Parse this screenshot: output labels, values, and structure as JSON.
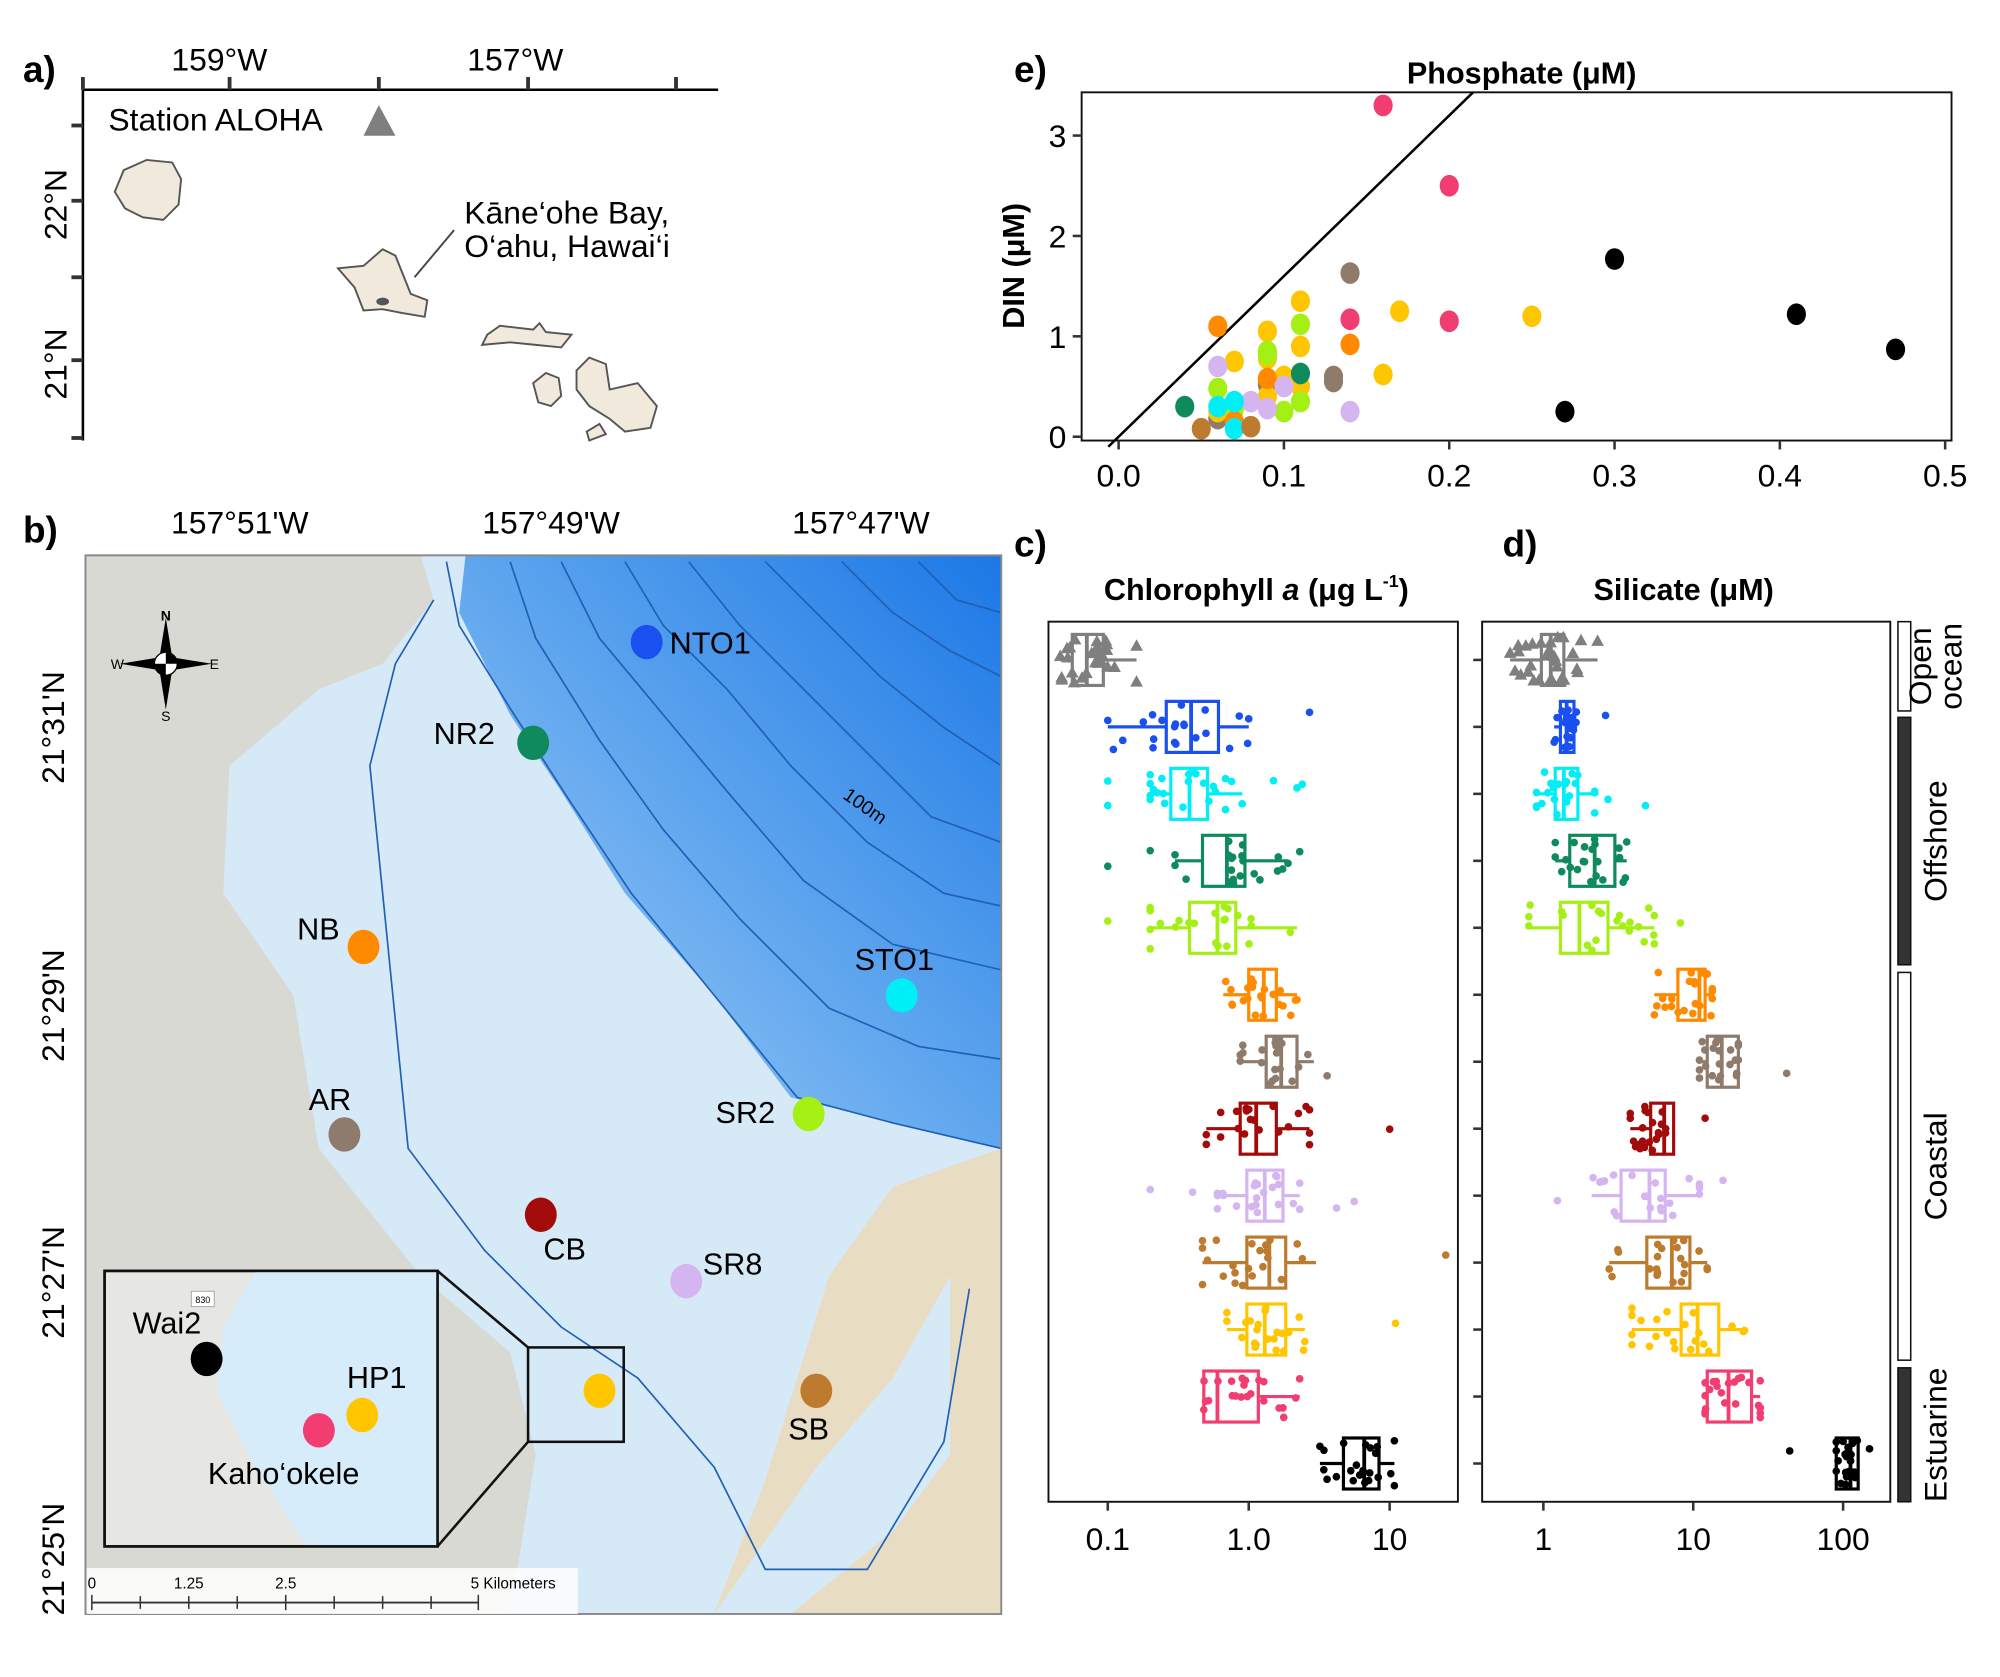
{
  "panel_labels": {
    "a": "a)",
    "b": "b)",
    "c": "c)",
    "d": "d)",
    "e": "e)"
  },
  "panel_a": {
    "lon_ticks": [
      "159°W",
      "157°W"
    ],
    "lat_ticks": [
      "22°N",
      "21°N"
    ],
    "station_aloha": "Station ALOHA",
    "site_label_line1": "Kāne‘ohe Bay,",
    "site_label_line2": "O‘ahu, Hawai‘i",
    "land_color": "#f0e9dc",
    "aloha_marker_color": "#7f7f7f"
  },
  "panel_b": {
    "lon_ticks": [
      "157°51'W",
      "157°49'W",
      "157°47'W"
    ],
    "lat_ticks": [
      "21°31'N",
      "21°29'N",
      "21°27'N",
      "21°25'N"
    ],
    "contour_label": "100m",
    "compass": {
      "n": "N",
      "s": "S",
      "e": "E",
      "w": "W"
    },
    "road_shield": "830",
    "scale_bar": {
      "ticks": [
        "0",
        "1.25",
        "2.5",
        "5 Kilometers"
      ]
    },
    "stations": [
      {
        "name": "NTO1",
        "color": "#1a4ff0"
      },
      {
        "name": "NR2",
        "color": "#0e8a5c"
      },
      {
        "name": "NB",
        "color": "#ff8a00"
      },
      {
        "name": "STO1",
        "color": "#00eef5"
      },
      {
        "name": "AR",
        "color": "#8f7b6c"
      },
      {
        "name": "SR2",
        "color": "#a5f014"
      },
      {
        "name": "CB",
        "color": "#a30a0a"
      },
      {
        "name": "SR8",
        "color": "#d4b5f0"
      },
      {
        "name": "SB",
        "color": "#bd7b2f"
      },
      {
        "name": "HP1",
        "color": "#ffc600"
      },
      {
        "name": "Wai2",
        "color": "#000000"
      },
      {
        "name": "Kaho‘okele",
        "color": "#f23d70"
      }
    ]
  },
  "chart_data": [
    {
      "id": "e",
      "type": "scatter",
      "title": "Phosphate (μM)",
      "ylabel": "DIN (μM)",
      "xlim": [
        -0.025,
        0.52
      ],
      "ylim": [
        -0.05,
        3.45
      ],
      "xticks": [
        "0.0",
        "0.1",
        "0.2",
        "0.3",
        "0.4",
        "0.5"
      ],
      "yticks": [
        "0",
        "1",
        "2",
        "3"
      ],
      "reference_line_slope": 16,
      "points": [
        [
          0.16,
          3.3,
          "#f23d70"
        ],
        [
          0.2,
          2.5,
          "#f23d70"
        ],
        [
          0.14,
          1.17,
          "#f23d70"
        ],
        [
          0.2,
          1.15,
          "#f23d70"
        ],
        [
          0.3,
          1.77,
          "#000000"
        ],
        [
          0.41,
          1.22,
          "#000000"
        ],
        [
          0.47,
          0.87,
          "#000000"
        ],
        [
          0.27,
          0.25,
          "#000000"
        ],
        [
          0.14,
          1.63,
          "#8f7b6c"
        ],
        [
          0.13,
          0.6,
          "#8f7b6c"
        ],
        [
          0.13,
          0.55,
          "#8f7b6c"
        ],
        [
          0.09,
          0.52,
          "#8f7b6c"
        ],
        [
          0.06,
          0.18,
          "#8f7b6c"
        ],
        [
          0.11,
          1.35,
          "#ffc600"
        ],
        [
          0.17,
          1.25,
          "#ffc600"
        ],
        [
          0.25,
          1.2,
          "#ffc600"
        ],
        [
          0.09,
          1.05,
          "#ffc600"
        ],
        [
          0.11,
          0.9,
          "#ffc600"
        ],
        [
          0.07,
          0.75,
          "#ffc600"
        ],
        [
          0.09,
          0.78,
          "#ffc600"
        ],
        [
          0.16,
          0.62,
          "#ffc600"
        ],
        [
          0.1,
          0.6,
          "#ffc600"
        ],
        [
          0.11,
          0.5,
          "#ffc600"
        ],
        [
          0.09,
          0.4,
          "#ffc600"
        ],
        [
          0.06,
          0.25,
          "#ffc600"
        ],
        [
          0.11,
          1.12,
          "#a5f014"
        ],
        [
          0.09,
          0.85,
          "#a5f014"
        ],
        [
          0.09,
          0.82,
          "#a5f014"
        ],
        [
          0.06,
          0.48,
          "#a5f014"
        ],
        [
          0.11,
          0.35,
          "#a5f014"
        ],
        [
          0.1,
          0.25,
          "#a5f014"
        ],
        [
          0.07,
          0.27,
          "#a5f014"
        ],
        [
          0.06,
          1.1,
          "#ff8a00"
        ],
        [
          0.14,
          0.92,
          "#ff8a00"
        ],
        [
          0.09,
          0.58,
          "#ff8a00"
        ],
        [
          0.07,
          0.15,
          "#ff8a00"
        ],
        [
          0.06,
          0.7,
          "#d4b5f0"
        ],
        [
          0.1,
          0.5,
          "#d4b5f0"
        ],
        [
          0.08,
          0.35,
          "#d4b5f0"
        ],
        [
          0.09,
          0.28,
          "#d4b5f0"
        ],
        [
          0.14,
          0.25,
          "#d4b5f0"
        ],
        [
          0.04,
          0.3,
          "#0e8a5c"
        ],
        [
          0.11,
          0.63,
          "#0e8a5c"
        ],
        [
          0.06,
          0.3,
          "#00eef5"
        ],
        [
          0.07,
          0.35,
          "#00eef5"
        ],
        [
          0.07,
          0.08,
          "#00eef5"
        ],
        [
          0.05,
          0.08,
          "#bd7b2f"
        ],
        [
          0.08,
          0.1,
          "#bd7b2f"
        ]
      ]
    },
    {
      "id": "c",
      "type": "box",
      "title": "Chlorophyll a (μg L-1)",
      "title_parts": [
        "Chlorophyll ",
        "a",
        " (μg L",
        "-1",
        ")"
      ],
      "xscale": "log",
      "xlim": [
        0.04,
        35
      ],
      "xticks": [
        "0.1",
        "1.0",
        "10"
      ],
      "rows": [
        {
          "color": "#7f7f7f",
          "marker": "triangle",
          "whisker_lo": 0.046,
          "q1": 0.056,
          "median": 0.071,
          "q3": 0.093,
          "whisker_hi": 0.16,
          "outliers": []
        },
        {
          "color": "#1a4ff0",
          "whisker_lo": 0.1,
          "q1": 0.26,
          "median": 0.39,
          "q3": 0.61,
          "whisker_hi": 1.0,
          "outliers": [
            2.7
          ]
        },
        {
          "color": "#00eef5",
          "whisker_lo": 0.2,
          "q1": 0.28,
          "median": 0.38,
          "q3": 0.51,
          "whisker_hi": 0.9,
          "outliers": [
            0.1,
            0.1,
            1.5,
            2.4,
            2.2
          ]
        },
        {
          "color": "#0e8a5c",
          "whisker_lo": 0.3,
          "q1": 0.47,
          "median": 0.7,
          "q3": 0.94,
          "whisker_hi": 1.9,
          "outliers": [
            0.1,
            0.2,
            2.3
          ]
        },
        {
          "color": "#a5f014",
          "whisker_lo": 0.2,
          "q1": 0.38,
          "median": 0.6,
          "q3": 0.81,
          "whisker_hi": 2.2,
          "outliers": [
            0.1
          ]
        },
        {
          "color": "#ff8a00",
          "whisker_lo": 0.66,
          "q1": 1.0,
          "median": 1.28,
          "q3": 1.57,
          "whisker_hi": 2.2,
          "outliers": []
        },
        {
          "color": "#8f7b6c",
          "whisker_lo": 0.87,
          "q1": 1.33,
          "median": 1.7,
          "q3": 2.2,
          "whisker_hi": 2.9,
          "outliers": [
            3.6
          ]
        },
        {
          "color": "#a30a0a",
          "whisker_lo": 0.5,
          "q1": 0.87,
          "median": 1.13,
          "q3": 1.57,
          "whisker_hi": 2.7,
          "outliers": [
            10
          ]
        },
        {
          "color": "#d4b5f0",
          "whisker_lo": 0.6,
          "q1": 0.97,
          "median": 1.3,
          "q3": 1.75,
          "whisker_hi": 2.3,
          "outliers": [
            0.2,
            0.4,
            4.2,
            5.6
          ]
        },
        {
          "color": "#bd7b2f",
          "whisker_lo": 0.47,
          "q1": 0.97,
          "median": 1.4,
          "q3": 1.83,
          "whisker_hi": 3.0,
          "outliers": [
            25
          ]
        },
        {
          "color": "#ffc600",
          "whisker_lo": 0.7,
          "q1": 0.97,
          "median": 1.3,
          "q3": 1.83,
          "whisker_hi": 2.5,
          "outliers": [
            11
          ]
        },
        {
          "color": "#f23d70",
          "whisker_lo": 0.48,
          "q1": 0.48,
          "median": 0.6,
          "q3": 1.17,
          "whisker_hi": 2.3,
          "outliers": []
        },
        {
          "color": "#000000",
          "whisker_lo": 3.2,
          "q1": 4.7,
          "median": 6.6,
          "q3": 8.4,
          "whisker_hi": 10.8,
          "outliers": []
        }
      ]
    },
    {
      "id": "d",
      "type": "box",
      "title": "Silicate (μM)",
      "xscale": "log",
      "xlim": [
        0.4,
        250
      ],
      "xticks": [
        "1",
        "10",
        "100"
      ],
      "rows": [
        {
          "color": "#7f7f7f",
          "marker": "triangle",
          "whisker_lo": 0.6,
          "q1": 0.97,
          "median": 1.12,
          "q3": 1.37,
          "whisker_hi": 2.3,
          "outliers": []
        },
        {
          "color": "#1a4ff0",
          "whisker_lo": 1.18,
          "q1": 1.3,
          "median": 1.43,
          "q3": 1.6,
          "whisker_hi": 1.66,
          "outliers": [
            2.6
          ]
        },
        {
          "color": "#00eef5",
          "whisker_lo": 0.9,
          "q1": 1.2,
          "median": 1.37,
          "q3": 1.7,
          "whisker_hi": 2.2,
          "outliers": [
            4.8,
            2.7
          ]
        },
        {
          "color": "#0e8a5c",
          "whisker_lo": 1.2,
          "q1": 1.5,
          "median": 2.2,
          "q3": 3.0,
          "whisker_hi": 3.6,
          "outliers": []
        },
        {
          "color": "#a5f014",
          "whisker_lo": 0.8,
          "q1": 1.3,
          "median": 1.74,
          "q3": 2.7,
          "whisker_hi": 5.5,
          "outliers": [
            8.2
          ]
        },
        {
          "color": "#ff8a00",
          "whisker_lo": 5.5,
          "q1": 7.9,
          "median": 11,
          "q3": 12,
          "whisker_hi": 13.4,
          "outliers": []
        },
        {
          "color": "#8f7b6c",
          "whisker_lo": 11,
          "q1": 12.4,
          "median": 15.5,
          "q3": 20,
          "whisker_hi": 20,
          "outliers": [
            42
          ]
        },
        {
          "color": "#a30a0a",
          "whisker_lo": 3.8,
          "q1": 5.2,
          "median": 6.4,
          "q3": 7.4,
          "whisker_hi": 7.4,
          "outliers": [
            12
          ]
        },
        {
          "color": "#d4b5f0",
          "whisker_lo": 2.1,
          "q1": 3.3,
          "median": 5.1,
          "q3": 6.5,
          "whisker_hi": 11,
          "outliers": [
            1.24,
            15.8
          ]
        },
        {
          "color": "#bd7b2f",
          "whisker_lo": 2.75,
          "q1": 4.9,
          "median": 7.2,
          "q3": 9.5,
          "whisker_hi": 12.4,
          "outliers": []
        },
        {
          "color": "#ffc600",
          "whisker_lo": 3.9,
          "q1": 8.3,
          "median": 10.7,
          "q3": 14.8,
          "whisker_hi": 22,
          "outliers": []
        },
        {
          "color": "#f23d70",
          "whisker_lo": 12,
          "q1": 12.4,
          "median": 17.2,
          "q3": 24.5,
          "whisker_hi": 28,
          "outliers": []
        },
        {
          "color": "#000000",
          "whisker_lo": 90,
          "q1": 90,
          "median": 112,
          "q3": 126,
          "whisker_hi": 126,
          "outliers": [
            44,
            150
          ]
        }
      ]
    }
  ],
  "region_bar": [
    {
      "label": "Open ocean",
      "lines": [
        "Open",
        "ocean"
      ],
      "fill": "#ffffff"
    },
    {
      "label": "Offshore",
      "lines": [
        "Offshore"
      ],
      "fill": "#333333"
    },
    {
      "label": "Coastal",
      "lines": [
        "Coastal"
      ],
      "fill": "#ffffff"
    },
    {
      "label": "Estuarine",
      "lines": [
        "Estuarine"
      ],
      "fill": "#333333"
    }
  ]
}
